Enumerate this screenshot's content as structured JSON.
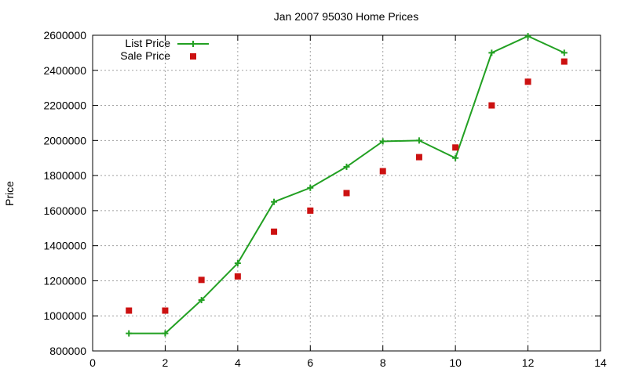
{
  "chart_data": {
    "type": "line",
    "title": "Jan 2007 95030 Home Prices",
    "xlabel": "",
    "ylabel": "Price",
    "xlim": [
      0,
      14
    ],
    "ylim": [
      800000,
      2600000
    ],
    "xticks": [
      0,
      2,
      4,
      6,
      8,
      10,
      12,
      14
    ],
    "yticks": [
      800000,
      1000000,
      1200000,
      1400000,
      1600000,
      1800000,
      2000000,
      2200000,
      2400000,
      2600000
    ],
    "grid": true,
    "legend_position": "top-left",
    "series": [
      {
        "name": "List Price",
        "style": "line-with-plus-markers",
        "color": "#22a022",
        "x": [
          1,
          2,
          3,
          4,
          5,
          6,
          7,
          8,
          9,
          10,
          11,
          12,
          13
        ],
        "y": [
          900000,
          900000,
          1090000,
          1300000,
          1650000,
          1730000,
          1850000,
          1995000,
          2000000,
          1900000,
          2500000,
          2595000,
          2500000
        ]
      },
      {
        "name": "Sale Price",
        "style": "square-markers",
        "color": "#cc1111",
        "x": [
          1,
          2,
          3,
          4,
          5,
          6,
          7,
          8,
          9,
          10,
          11,
          12,
          13
        ],
        "y": [
          1030000,
          1030000,
          1205000,
          1225000,
          1480000,
          1600000,
          1700000,
          1825000,
          1905000,
          1960000,
          2200000,
          2335000,
          2450000
        ]
      }
    ]
  }
}
